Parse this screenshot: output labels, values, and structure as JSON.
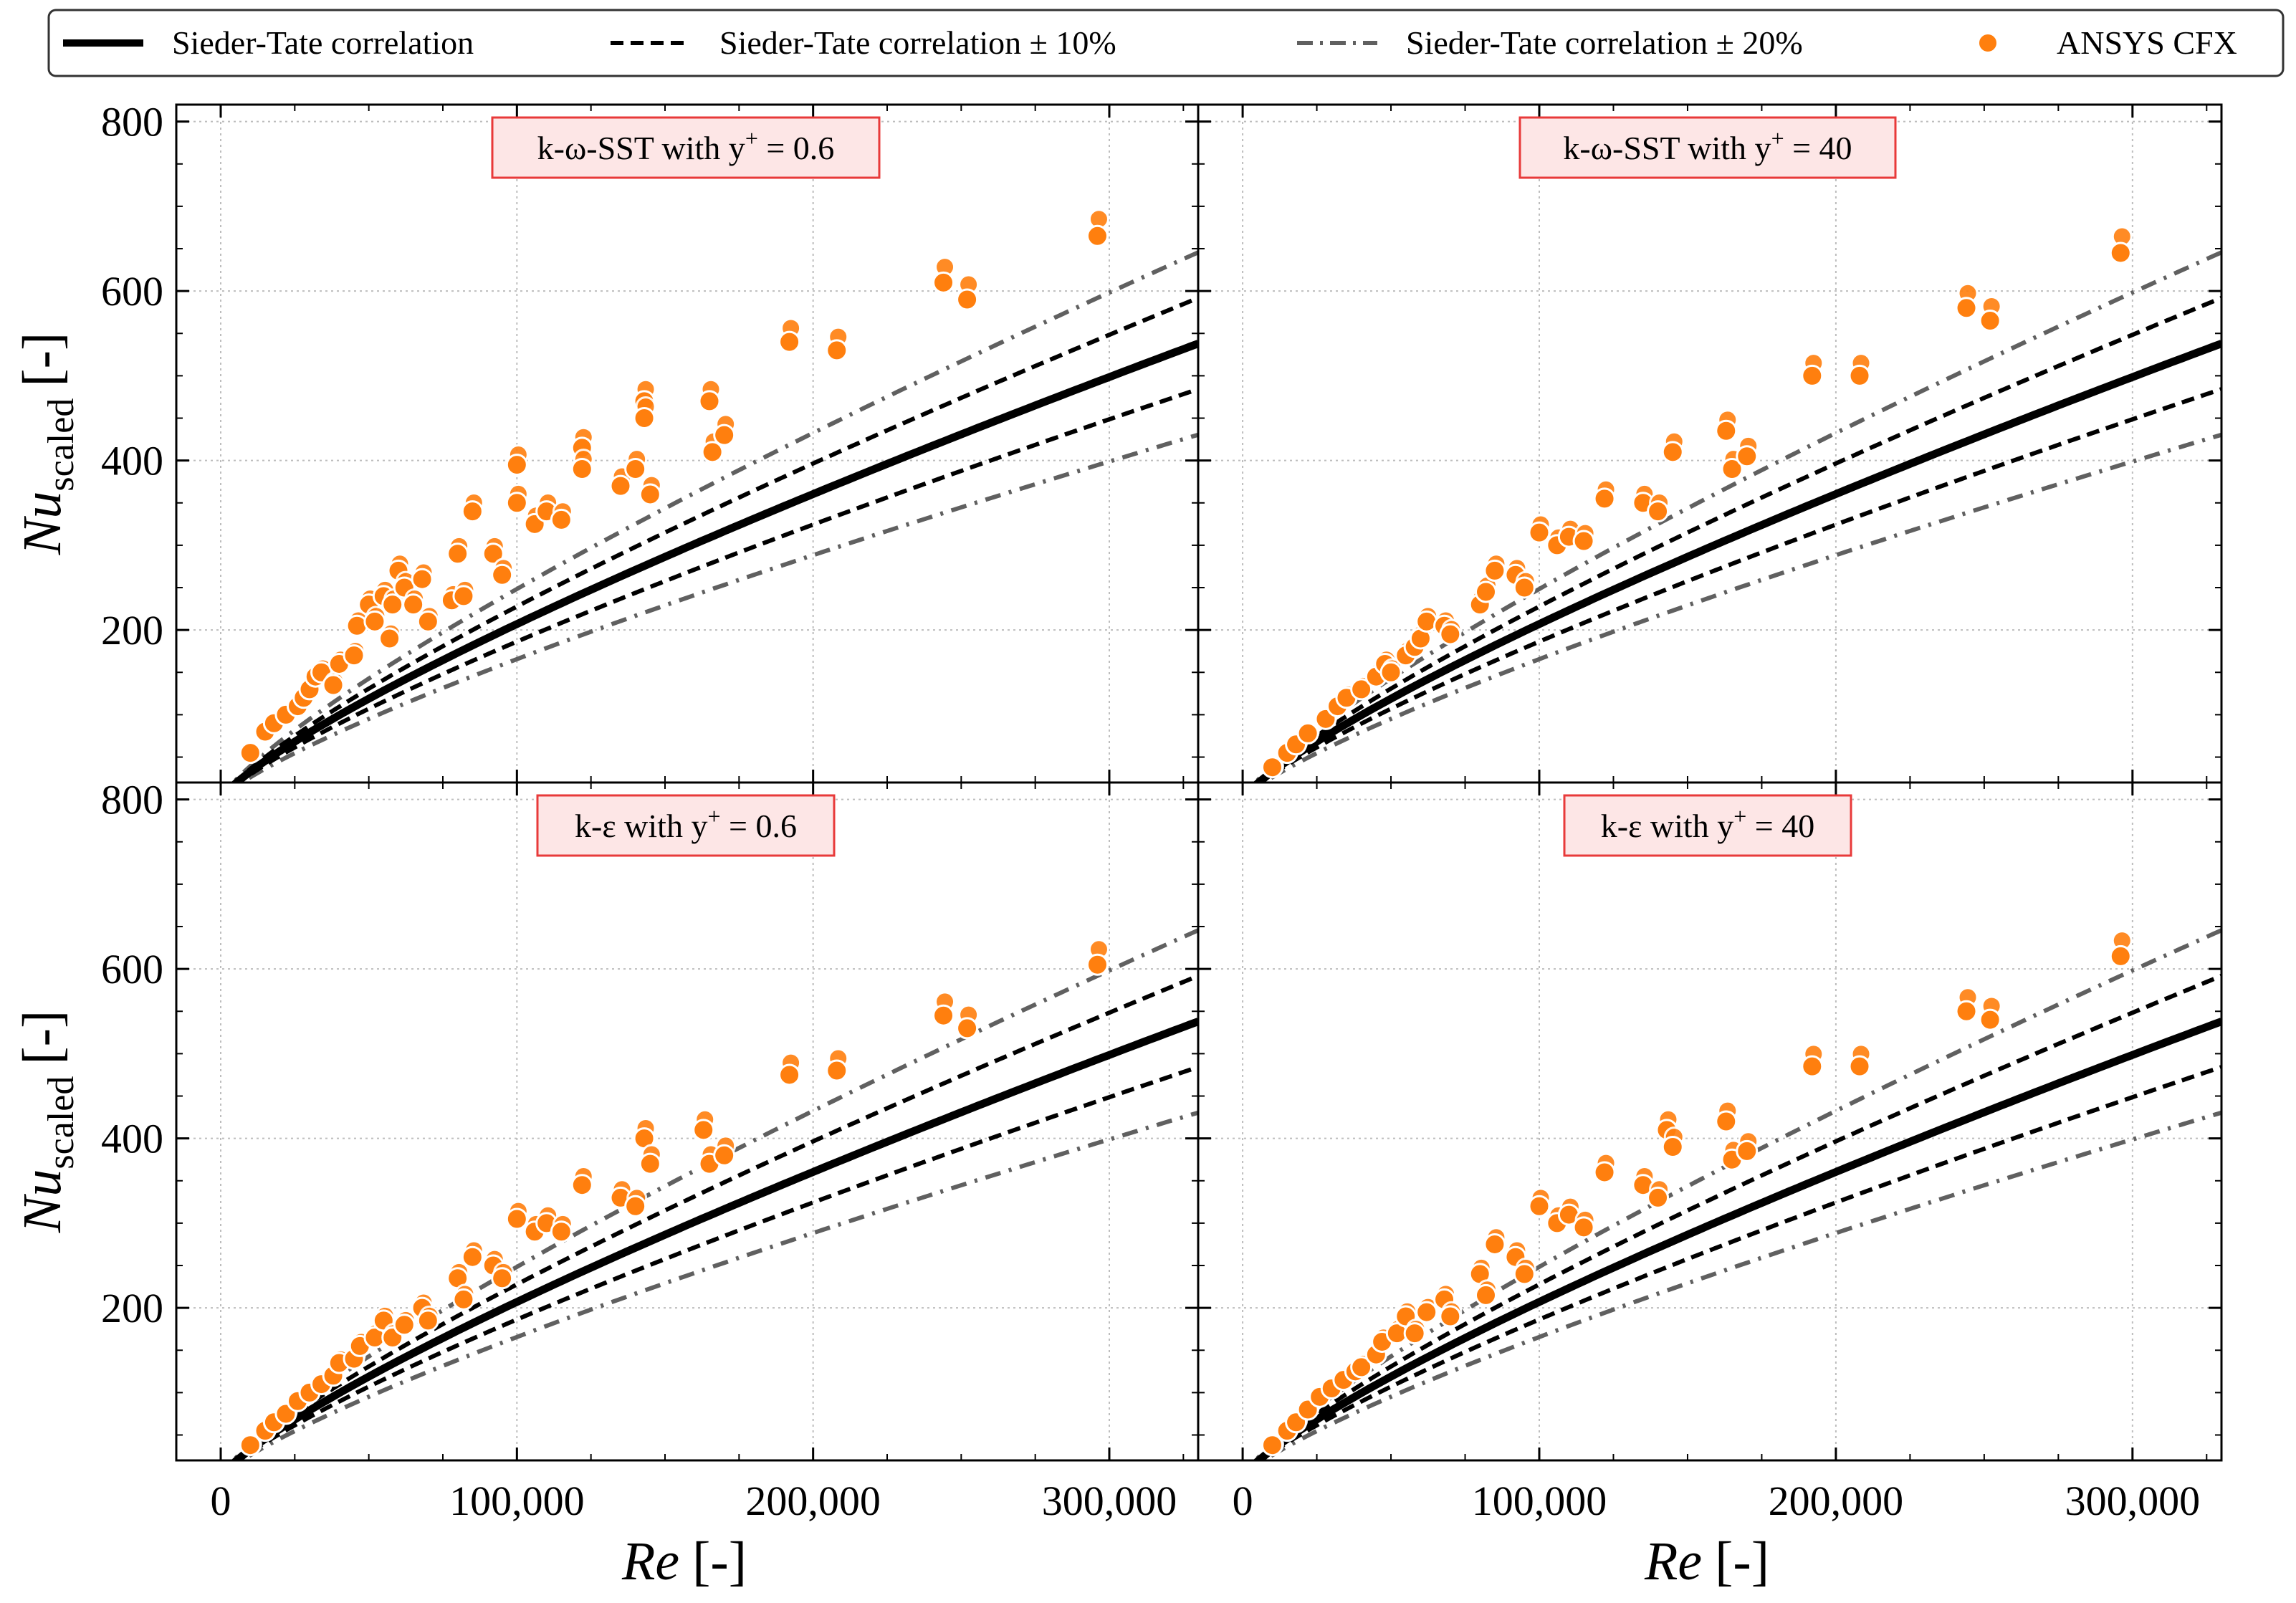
{
  "legend": {
    "items": [
      {
        "label": "Sieder-Tate correlation",
        "style": "solid"
      },
      {
        "label": "Sieder-Tate correlation ± 10%",
        "style": "dashed"
      },
      {
        "label": "Sieder-Tate correlation ± 20%",
        "style": "dashdot"
      },
      {
        "label": "ANSYS CFX",
        "style": "marker"
      }
    ]
  },
  "axes": {
    "xlabel": "Re [-]",
    "ylabel": "Nu_scaled [-]",
    "ylabel_main": "Nu",
    "ylabel_sub": "scaled",
    "ylabel_unit": "[-]",
    "xlabel_main": "Re",
    "xlabel_unit": "[-]",
    "xticks": [
      "0",
      "100,000",
      "200,000",
      "300,000"
    ],
    "yticks": [
      "200",
      "400",
      "600",
      "800"
    ]
  },
  "colors": {
    "cfx": "#ff7f0e",
    "correlation": "#000000",
    "band20": "#606060",
    "annot_border": "#e83a3a",
    "annot_fill": "#fde6e6",
    "grid": "#bdbdbd"
  },
  "chart_data": [
    {
      "type": "scatter",
      "title": "k-ω-SST with y+ = 0.6",
      "title_text": "k-ω-SST with y",
      "title_sup": "+",
      "title_tail": " = 0.6",
      "xlim": [
        -15000,
        330000
      ],
      "ylim": [
        20,
        820
      ],
      "grid": true,
      "correlation": {
        "model": "Nu = 0.0207 * Re^0.8",
        "range_x": [
          0,
          330000
        ],
        "bands_pct": [
          10,
          20
        ]
      },
      "series": [
        {
          "name": "ANSYS CFX",
          "x": [
            10000,
            15000,
            18000,
            22000,
            26000,
            28000,
            30000,
            32000,
            34000,
            38000,
            40000,
            45000,
            46000,
            50000,
            52000,
            55000,
            57000,
            58000,
            60000,
            62000,
            65000,
            68000,
            70000,
            78000,
            80000,
            82000,
            85000,
            92000,
            95000,
            100000,
            100000,
            106000,
            110000,
            115000,
            122000,
            122000,
            135000,
            140000,
            143000,
            143000,
            145000,
            165000,
            166000,
            170000,
            192000,
            208000,
            244000,
            252000,
            296000
          ],
          "y": [
            55,
            80,
            90,
            100,
            110,
            120,
            130,
            145,
            150,
            135,
            160,
            170,
            205,
            230,
            210,
            240,
            190,
            230,
            270,
            250,
            230,
            260,
            210,
            235,
            290,
            240,
            340,
            290,
            265,
            395,
            350,
            325,
            340,
            330,
            415,
            390,
            370,
            390,
            470,
            450,
            360,
            470,
            410,
            430,
            540,
            530,
            610,
            590,
            665
          ]
        }
      ]
    },
    {
      "type": "scatter",
      "title": "k-ω-SST with y+ = 40",
      "title_text": "k-ω-SST with y",
      "title_sup": "+",
      "title_tail": " = 40",
      "xlim": [
        -15000,
        330000
      ],
      "ylim": [
        20,
        820
      ],
      "grid": true,
      "correlation": {
        "model": "Nu = 0.0207 * Re^0.8",
        "range_x": [
          0,
          330000
        ],
        "bands_pct": [
          10,
          20
        ]
      },
      "series": [
        {
          "name": "ANSYS CFX",
          "x": [
            10000,
            15000,
            18000,
            22000,
            28000,
            32000,
            35000,
            40000,
            45000,
            48000,
            50000,
            55000,
            58000,
            60000,
            62000,
            68000,
            70000,
            80000,
            82000,
            85000,
            92000,
            95000,
            100000,
            106000,
            110000,
            115000,
            122000,
            135000,
            140000,
            145000,
            163000,
            165000,
            170000,
            192000,
            208000,
            244000,
            252000,
            296000
          ],
          "y": [
            38,
            55,
            65,
            78,
            95,
            110,
            120,
            130,
            145,
            160,
            150,
            170,
            180,
            190,
            210,
            205,
            195,
            230,
            245,
            270,
            265,
            250,
            315,
            300,
            310,
            305,
            355,
            350,
            340,
            410,
            435,
            390,
            405,
            500,
            500,
            580,
            565,
            645
          ]
        }
      ]
    },
    {
      "type": "scatter",
      "title": "k-ε with y+ = 0.6",
      "title_text": "k-ε with y",
      "title_sup": "+",
      "title_tail": " = 0.6",
      "xlim": [
        -15000,
        330000
      ],
      "ylim": [
        20,
        820
      ],
      "grid": true,
      "correlation": {
        "model": "Nu = 0.0207 * Re^0.8",
        "range_x": [
          0,
          330000
        ],
        "bands_pct": [
          10,
          20
        ]
      },
      "series": [
        {
          "name": "ANSYS CFX",
          "x": [
            10000,
            15000,
            18000,
            22000,
            26000,
            30000,
            34000,
            38000,
            40000,
            45000,
            47000,
            52000,
            55000,
            58000,
            62000,
            68000,
            70000,
            80000,
            82000,
            85000,
            92000,
            95000,
            100000,
            106000,
            110000,
            115000,
            122000,
            135000,
            140000,
            143000,
            145000,
            163000,
            165000,
            170000,
            192000,
            208000,
            244000,
            252000,
            296000
          ],
          "y": [
            38,
            55,
            65,
            75,
            90,
            100,
            110,
            120,
            135,
            140,
            155,
            165,
            185,
            165,
            180,
            200,
            185,
            235,
            210,
            260,
            250,
            235,
            305,
            290,
            300,
            290,
            345,
            330,
            320,
            400,
            370,
            410,
            370,
            380,
            475,
            480,
            545,
            530,
            605
          ]
        }
      ]
    },
    {
      "type": "scatter",
      "title": "k-ε with y+ = 40",
      "title_text": "k-ε with y",
      "title_sup": "+",
      "title_tail": " = 40",
      "xlim": [
        -15000,
        330000
      ],
      "ylim": [
        20,
        820
      ],
      "grid": true,
      "correlation": {
        "model": "Nu = 0.0207 * Re^0.8",
        "range_x": [
          0,
          330000
        ],
        "bands_pct": [
          10,
          20
        ]
      },
      "series": [
        {
          "name": "ANSYS CFX",
          "x": [
            10000,
            15000,
            18000,
            22000,
            26000,
            30000,
            34000,
            38000,
            40000,
            45000,
            47000,
            52000,
            55000,
            58000,
            62000,
            68000,
            70000,
            80000,
            82000,
            85000,
            92000,
            95000,
            100000,
            106000,
            110000,
            115000,
            122000,
            135000,
            140000,
            143000,
            145000,
            163000,
            165000,
            170000,
            192000,
            208000,
            244000,
            252000,
            296000
          ],
          "y": [
            38,
            55,
            65,
            80,
            95,
            105,
            115,
            125,
            130,
            145,
            160,
            170,
            190,
            170,
            195,
            210,
            190,
            240,
            215,
            275,
            260,
            240,
            320,
            300,
            310,
            295,
            360,
            345,
            330,
            410,
            390,
            420,
            375,
            385,
            485,
            485,
            550,
            540,
            615
          ]
        }
      ]
    }
  ]
}
